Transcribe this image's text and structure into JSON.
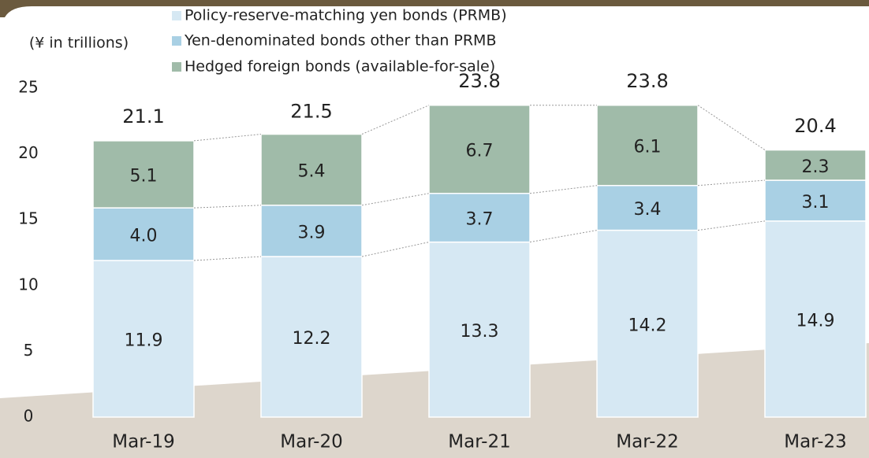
{
  "chart_data": {
    "type": "stacked_bar",
    "y_axis_label": "(¥ in trillions)",
    "categories": [
      "Mar-19",
      "Mar-20",
      "Mar-21",
      "Mar-22",
      "Mar-23"
    ],
    "series": [
      {
        "name": "Policy-reserve-matching yen bonds (PRMB)",
        "color": "#d6e8f3",
        "values": [
          11.9,
          12.2,
          13.3,
          14.2,
          14.9
        ]
      },
      {
        "name": "Yen-denominated bonds other than PRMB",
        "color": "#a9d0e4",
        "values": [
          4.0,
          3.9,
          3.7,
          3.4,
          3.1
        ],
        "value_labels": [
          "4.0",
          "3.9",
          "3.7",
          "3.4",
          "3.1"
        ]
      },
      {
        "name": "Hedged foreign bonds (available-for-sale)",
        "color": "#a0bba9",
        "values": [
          5.1,
          5.4,
          6.7,
          6.1,
          2.3
        ]
      }
    ],
    "totals": [
      21.1,
      21.5,
      23.8,
      23.8,
      20.4
    ],
    "ylim": [
      0,
      25
    ],
    "yticks": [
      0,
      5,
      10,
      15,
      20,
      25
    ]
  }
}
